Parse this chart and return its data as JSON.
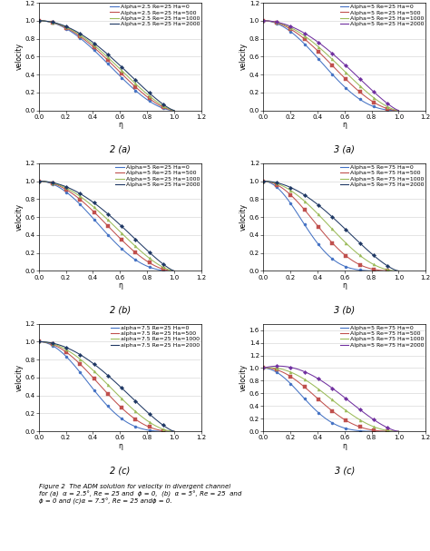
{
  "panels": [
    {
      "label": "2 (a)",
      "alpha_label": "2.5",
      "Re_label": "25",
      "series": [
        {
          "Ha": 0,
          "color": "#4472C4",
          "marker": "o",
          "label": "Alpha=2.5 Re=25 Ha=0",
          "p": 1.8
        },
        {
          "Ha": 500,
          "color": "#C0504D",
          "marker": "s",
          "label": "Alpha=2.5 Re=25 Ha=500",
          "p": 1.6
        },
        {
          "Ha": 1000,
          "color": "#9BBB59",
          "marker": "^",
          "label": "Alpha=2.5 Re=25 Ha=1000",
          "p": 1.45
        },
        {
          "Ha": 2000,
          "color": "#1F3864",
          "marker": "D",
          "label": "Alpha=2.5 Re=25 Ha=2000",
          "p": 1.3
        }
      ],
      "ylim": [
        0,
        1.2
      ],
      "xlim": [
        0,
        1.2
      ],
      "ylabel": "velocity",
      "xlabel": "η",
      "yticks": [
        0,
        0.2,
        0.4,
        0.6,
        0.8,
        1.0,
        1.2
      ],
      "xticks": [
        0,
        0.2,
        0.4,
        0.6,
        0.8,
        1.0,
        1.2
      ]
    },
    {
      "label": "3 (a)",
      "alpha_label": "5",
      "Re_label": "25",
      "series": [
        {
          "Ha": 0,
          "color": "#4472C4",
          "marker": "o",
          "label": "Alpha=5 Re=25 Ha=0",
          "p": 2.5
        },
        {
          "Ha": 500,
          "color": "#C0504D",
          "marker": "s",
          "label": "Alpha=5 Re=25 Ha=500",
          "p": 1.9
        },
        {
          "Ha": 1000,
          "color": "#9BBB59",
          "marker": "^",
          "label": "Alpha=5 Re=25 Ha=1000",
          "p": 1.55
        },
        {
          "Ha": 2000,
          "color": "#7030A0",
          "marker": "D",
          "label": "Alpha=5 Re=25 Ha=2000",
          "p": 1.25
        }
      ],
      "ylim": [
        0,
        1.2
      ],
      "xlim": [
        0,
        1.2
      ],
      "ylabel": "velocity",
      "xlabel": "η",
      "yticks": [
        0,
        0.2,
        0.4,
        0.6,
        0.8,
        1.0,
        1.2
      ],
      "xticks": [
        0,
        0.2,
        0.4,
        0.6,
        0.8,
        1.0,
        1.2
      ]
    },
    {
      "label": "2 (b)",
      "alpha_label": "5",
      "Re_label": "25",
      "series": [
        {
          "Ha": 0,
          "color": "#4472C4",
          "marker": "o",
          "label": "Alpha=5 Re=25 Ha=0",
          "p": 2.5
        },
        {
          "Ha": 500,
          "color": "#C0504D",
          "marker": "s",
          "label": "Alpha=5 Re=25 Ha=500",
          "p": 1.9
        },
        {
          "Ha": 1000,
          "color": "#9BBB59",
          "marker": "^",
          "label": "Alpha=5 Re=25 Ha=1000",
          "p": 1.55
        },
        {
          "Ha": 2000,
          "color": "#1F3864",
          "marker": "D",
          "label": "Alpha=5 Re=25 Ha=2000",
          "p": 1.25
        }
      ],
      "ylim": [
        0,
        1.2
      ],
      "xlim": [
        0,
        1.2
      ],
      "ylabel": "velocity",
      "xlabel": "η",
      "yticks": [
        0,
        0.2,
        0.4,
        0.6,
        0.8,
        1.0,
        1.2
      ],
      "xticks": [
        0,
        0.2,
        0.4,
        0.6,
        0.8,
        1.0,
        1.2
      ]
    },
    {
      "label": "3 (b)",
      "alpha_label": "5",
      "Re_label": "75",
      "series": [
        {
          "Ha": 0,
          "color": "#4472C4",
          "marker": "o",
          "label": "Alpha=5 Re=75 Ha=0",
          "p": 5.5
        },
        {
          "Ha": 500,
          "color": "#C0504D",
          "marker": "s",
          "label": "Alpha=5 Re=75 Ha=500",
          "p": 3.2
        },
        {
          "Ha": 1000,
          "color": "#9BBB59",
          "marker": "^",
          "label": "Alpha=5 Re=75 Ha=1000",
          "p": 2.1
        },
        {
          "Ha": 2000,
          "color": "#1F3864",
          "marker": "D",
          "label": "Alpha=5 Re=75 Ha=2000",
          "p": 1.4
        }
      ],
      "ylim": [
        0,
        1.2
      ],
      "xlim": [
        0,
        1.2
      ],
      "ylabel": "velocity",
      "xlabel": "η",
      "yticks": [
        0,
        0.2,
        0.4,
        0.6,
        0.8,
        1.0,
        1.2
      ],
      "xticks": [
        0,
        0.2,
        0.4,
        0.6,
        0.8,
        1.0,
        1.2
      ]
    },
    {
      "label": "2 (c)",
      "alpha_label": "7.5",
      "Re_label": "25",
      "series": [
        {
          "Ha": 0,
          "color": "#4472C4",
          "marker": "o",
          "label": "alpha=7.5 Re=25 Ha=0",
          "p": 3.5
        },
        {
          "Ha": 500,
          "color": "#C0504D",
          "marker": "s",
          "label": "alpha=7.5 Re=25 Ha=500",
          "p": 2.4
        },
        {
          "Ha": 1000,
          "color": "#9BBB59",
          "marker": "^",
          "label": "alpha=7.5 Re=25 Ha=1000",
          "p": 1.8
        },
        {
          "Ha": 2000,
          "color": "#1F3864",
          "marker": "D",
          "label": "alpha=7.5 Re=25 Ha=2000",
          "p": 1.3
        }
      ],
      "ylim": [
        0,
        1.2
      ],
      "xlim": [
        0,
        1.2
      ],
      "ylabel": "velocity",
      "xlabel": "η",
      "yticks": [
        0,
        0.2,
        0.4,
        0.6,
        0.8,
        1.0,
        1.2
      ],
      "xticks": [
        0,
        0.2,
        0.4,
        0.6,
        0.8,
        1.0,
        1.2
      ]
    },
    {
      "label": "3 (c)",
      "alpha_label": "5",
      "Re_label": "75",
      "series": [
        {
          "Ha": 0,
          "color": "#4472C4",
          "marker": "o",
          "label": "Alpha=5 Re=75 Ha=0",
          "p": 5.5
        },
        {
          "Ha": 500,
          "color": "#C0504D",
          "marker": "s",
          "label": "Alpha=5 Re=75 Ha=500",
          "p": 3.2
        },
        {
          "Ha": 1000,
          "color": "#9BBB59",
          "marker": "^",
          "label": "Alpha=5 Re=75 Ha=1000",
          "p": 2.1
        },
        {
          "Ha": 2000,
          "color": "#7030A0",
          "marker": "D",
          "label": "Alpha=5 Re=75 Ha=2000",
          "p": 1.4
        }
      ],
      "ylim": [
        0,
        1.7
      ],
      "xlim": [
        0,
        1.2
      ],
      "ylabel": "velocity",
      "xlabel": "η",
      "yticks": [
        0,
        0.2,
        0.4,
        0.6,
        0.8,
        1.0,
        1.2,
        1.4,
        1.6
      ],
      "xticks": [
        0,
        0.2,
        0.4,
        0.6,
        0.8,
        1.0,
        1.2
      ]
    }
  ],
  "caption": "Figure 2  The ADM solution for velocity in divergent channel\nfor (a)  α = 2.5°, Re = 25 and  ϕ = 0,  (b)  α = 5°, Re = 25  and\nϕ = 0 and (c)α = 7.5°, Re = 25 andϕ = 0.",
  "background": "#FFFFFF",
  "grid_color": "#D0D0D0",
  "legend_font_size": 4.5,
  "label_font_size": 5.5,
  "tick_font_size": 5.0,
  "sublabel_font_size": 7.0
}
